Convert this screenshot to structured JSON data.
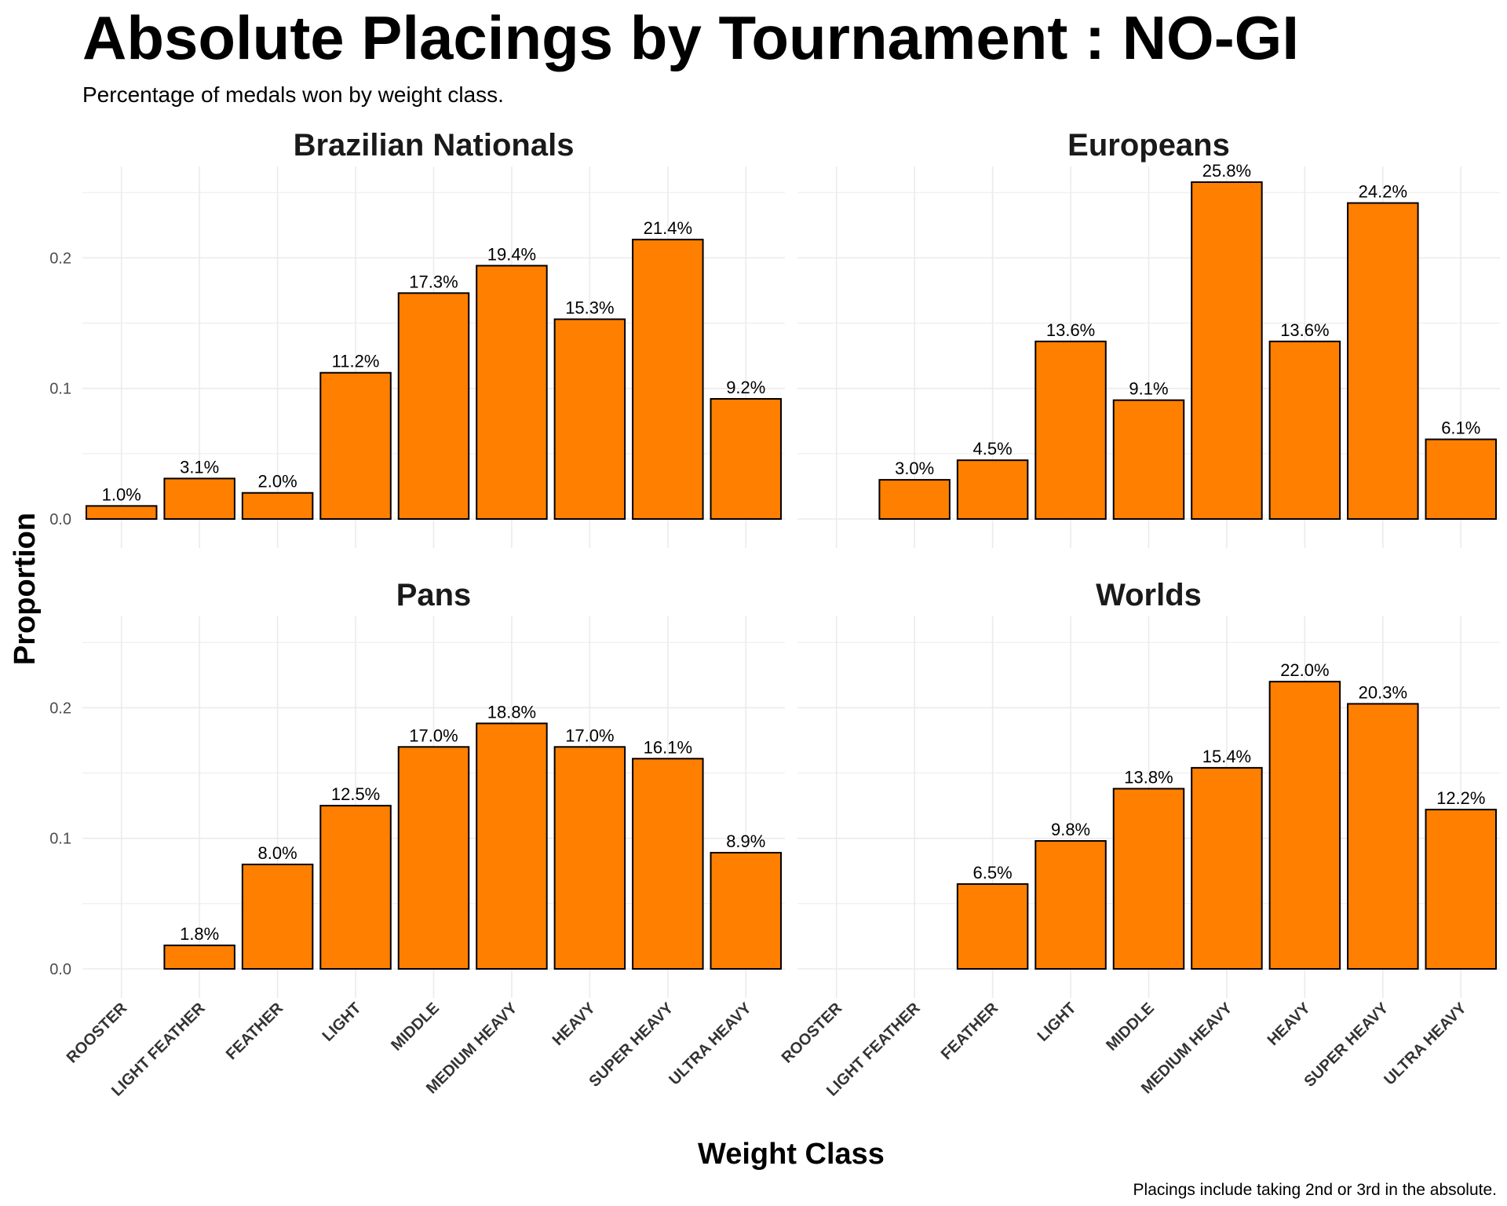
{
  "title": "Absolute Placings by Tournament : NO-GI",
  "subtitle": "Percentage of medals won by weight class.",
  "caption": "Placings include taking 2nd or 3rd in the absolute.",
  "colors": {
    "bar": "#FF7F00",
    "bar_outline": "#000000",
    "grid": "#EBEBEB"
  },
  "chart_data": {
    "type": "bar",
    "facets": 4,
    "layout": "2x2 grid",
    "xlabel": "Weight Class",
    "ylabel": "Proportion",
    "ylim": [
      0,
      0.27
    ],
    "yticks": [
      0.0,
      0.1,
      0.2
    ],
    "ytick_labels": [
      "0.0",
      "0.1",
      "0.2"
    ],
    "grid": true,
    "categories": [
      "ROOSTER",
      "LIGHT FEATHER",
      "FEATHER",
      "LIGHT",
      "MIDDLE",
      "MEDIUM HEAVY",
      "HEAVY",
      "SUPER HEAVY",
      "ULTRA HEAVY"
    ],
    "series": [
      {
        "name": "Brazilian Nationals",
        "values": [
          0.01,
          0.031,
          0.02,
          0.112,
          0.173,
          0.194,
          0.153,
          0.214,
          0.092
        ],
        "labels": [
          "1.0%",
          "3.1%",
          "2.0%",
          "11.2%",
          "17.3%",
          "19.4%",
          "15.3%",
          "21.4%",
          "9.2%"
        ]
      },
      {
        "name": "Europeans",
        "values": [
          null,
          0.03,
          0.045,
          0.136,
          0.091,
          0.258,
          0.136,
          0.242,
          0.061
        ],
        "labels": [
          "",
          "3.0%",
          "4.5%",
          "13.6%",
          "9.1%",
          "25.8%",
          "13.6%",
          "24.2%",
          "6.1%"
        ]
      },
      {
        "name": "Pans",
        "values": [
          null,
          0.018,
          0.08,
          0.125,
          0.17,
          0.188,
          0.17,
          0.161,
          0.089
        ],
        "labels": [
          "",
          "1.8%",
          "8.0%",
          "12.5%",
          "17.0%",
          "18.8%",
          "17.0%",
          "16.1%",
          "8.9%"
        ]
      },
      {
        "name": "Worlds",
        "values": [
          null,
          null,
          0.065,
          0.098,
          0.138,
          0.154,
          0.22,
          0.203,
          0.122
        ],
        "labels": [
          "",
          "",
          "6.5%",
          "9.8%",
          "13.8%",
          "15.4%",
          "22.0%",
          "20.3%",
          "12.2%"
        ]
      }
    ]
  }
}
